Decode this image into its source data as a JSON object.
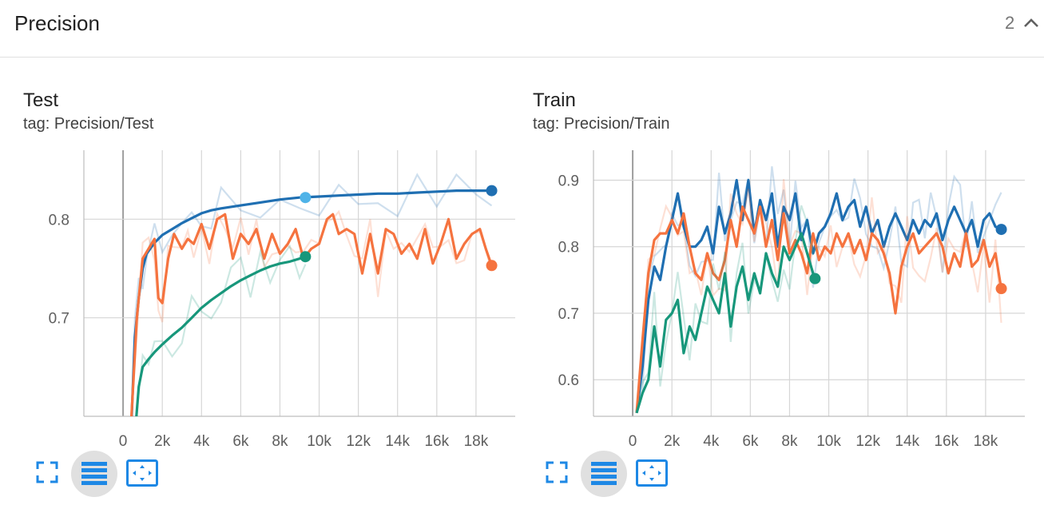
{
  "header": {
    "title": "Precision",
    "count": "2"
  },
  "icons": {
    "collapse": "chevron-up-icon",
    "expand": "fullscreen-icon",
    "lines": "lines-icon",
    "fit": "fit-domain-icon"
  },
  "colors": {
    "blue": "#1f6fb2",
    "orange": "#f5733f",
    "teal": "#17977b",
    "light_blue": "#4fb3e8"
  },
  "chart_data": [
    {
      "type": "line",
      "title": "Test",
      "tag": "tag: Precision/Test",
      "xlabel": "",
      "ylabel": "",
      "xlim": [
        -2000,
        20000
      ],
      "ylim": [
        0.6,
        0.87
      ],
      "x_ticks": [
        "0",
        "2k",
        "4k",
        "6k",
        "8k",
        "10k",
        "12k",
        "14k",
        "16k",
        "18k"
      ],
      "y_ticks": [
        "0.7",
        "0.8"
      ],
      "grid": true,
      "series": [
        {
          "color": "#1f6fb2",
          "x": [
            400,
            600,
            800,
            1000,
            1200,
            1600,
            2000,
            2500,
            3000,
            3500,
            4000,
            4500,
            5000,
            6000,
            7000,
            8000,
            9000,
            10000,
            11000,
            12000,
            13000,
            14000,
            15000,
            16000,
            17000,
            18000,
            18800
          ],
          "y": [
            0.58,
            0.68,
            0.72,
            0.75,
            0.765,
            0.776,
            0.784,
            0.79,
            0.796,
            0.801,
            0.806,
            0.809,
            0.811,
            0.814,
            0.817,
            0.82,
            0.822,
            0.823,
            0.824,
            0.825,
            0.826,
            0.826,
            0.827,
            0.828,
            0.829,
            0.829,
            0.829
          ]
        },
        {
          "color": "#f5733f",
          "x": [
            400,
            700,
            1000,
            1300,
            1600,
            1800,
            2000,
            2300,
            2600,
            3000,
            3300,
            3600,
            4000,
            4400,
            4800,
            5200,
            5600,
            6000,
            6400,
            6800,
            7200,
            7600,
            8000,
            8400,
            8800,
            9200,
            9600,
            10000,
            10400,
            10700,
            11000,
            11400,
            11800,
            12200,
            12600,
            13000,
            13400,
            13800,
            14200,
            14600,
            15000,
            15400,
            15800,
            16200,
            16600,
            17000,
            17400,
            17800,
            18200,
            18500,
            18800
          ],
          "y": [
            0.59,
            0.7,
            0.76,
            0.77,
            0.78,
            0.72,
            0.715,
            0.76,
            0.785,
            0.77,
            0.78,
            0.775,
            0.795,
            0.77,
            0.8,
            0.805,
            0.76,
            0.785,
            0.775,
            0.79,
            0.76,
            0.785,
            0.765,
            0.775,
            0.79,
            0.76,
            0.77,
            0.775,
            0.8,
            0.805,
            0.785,
            0.79,
            0.785,
            0.745,
            0.785,
            0.745,
            0.79,
            0.785,
            0.765,
            0.775,
            0.76,
            0.79,
            0.755,
            0.775,
            0.8,
            0.76,
            0.775,
            0.785,
            0.79,
            0.77,
            0.753
          ]
        },
        {
          "color": "#17977b",
          "x": [
            600,
            800,
            1000,
            1300,
            1600,
            2000,
            2500,
            3000,
            3500,
            4000,
            4500,
            5000,
            5500,
            6000,
            6500,
            7000,
            7500,
            8000,
            8500,
            9000,
            9300
          ],
          "y": [
            0.58,
            0.63,
            0.65,
            0.658,
            0.665,
            0.673,
            0.682,
            0.69,
            0.7,
            0.71,
            0.718,
            0.725,
            0.732,
            0.738,
            0.743,
            0.748,
            0.752,
            0.755,
            0.757,
            0.76,
            0.762
          ]
        }
      ],
      "markers": [
        {
          "color": "#1f6fb2",
          "x": 18800,
          "y": 0.829
        },
        {
          "color": "#f5733f",
          "x": 18800,
          "y": 0.753
        },
        {
          "color": "#17977b",
          "x": 9300,
          "y": 0.762
        },
        {
          "color": "#4fb3e8",
          "x": 9300,
          "y": 0.822
        }
      ]
    },
    {
      "type": "line",
      "title": "Train",
      "tag": "tag: Precision/Train",
      "xlabel": "",
      "ylabel": "",
      "xlim": [
        -2000,
        20000
      ],
      "ylim": [
        0.545,
        0.945
      ],
      "x_ticks": [
        "0",
        "2k",
        "4k",
        "6k",
        "8k",
        "10k",
        "12k",
        "14k",
        "16k",
        "18k"
      ],
      "y_ticks": [
        "0.6",
        "0.7",
        "0.8",
        "0.9"
      ],
      "grid": true,
      "series": [
        {
          "color": "#1f6fb2",
          "x": [
            200,
            500,
            800,
            1100,
            1400,
            1700,
            2000,
            2300,
            2600,
            2900,
            3200,
            3500,
            3800,
            4100,
            4400,
            4700,
            5000,
            5300,
            5600,
            5900,
            6200,
            6500,
            6800,
            7100,
            7400,
            7700,
            8000,
            8300,
            8600,
            8900,
            9200,
            9500,
            9800,
            10100,
            10400,
            10700,
            11000,
            11300,
            11600,
            11900,
            12200,
            12500,
            12800,
            13100,
            13400,
            13700,
            14000,
            14300,
            14600,
            14900,
            15200,
            15500,
            15800,
            16100,
            16400,
            16700,
            17000,
            17300,
            17600,
            17900,
            18200,
            18500,
            18800
          ],
          "y": [
            0.55,
            0.62,
            0.72,
            0.77,
            0.75,
            0.8,
            0.84,
            0.88,
            0.83,
            0.8,
            0.8,
            0.81,
            0.83,
            0.79,
            0.86,
            0.82,
            0.85,
            0.9,
            0.84,
            0.9,
            0.82,
            0.87,
            0.84,
            0.88,
            0.8,
            0.86,
            0.84,
            0.88,
            0.81,
            0.84,
            0.79,
            0.82,
            0.83,
            0.85,
            0.88,
            0.84,
            0.86,
            0.87,
            0.83,
            0.86,
            0.82,
            0.84,
            0.8,
            0.83,
            0.85,
            0.83,
            0.81,
            0.84,
            0.82,
            0.84,
            0.83,
            0.85,
            0.81,
            0.84,
            0.86,
            0.84,
            0.82,
            0.84,
            0.8,
            0.84,
            0.85,
            0.83,
            0.826
          ]
        },
        {
          "color": "#f5733f",
          "x": [
            200,
            500,
            800,
            1100,
            1400,
            1700,
            2000,
            2300,
            2600,
            2900,
            3200,
            3500,
            3800,
            4100,
            4400,
            4700,
            5000,
            5300,
            5600,
            5900,
            6200,
            6500,
            6800,
            7100,
            7400,
            7700,
            8000,
            8300,
            8600,
            8900,
            9200,
            9500,
            9800,
            10100,
            10400,
            10700,
            11000,
            11300,
            11600,
            11900,
            12200,
            12500,
            12800,
            13100,
            13400,
            13700,
            14000,
            14300,
            14600,
            14900,
            15200,
            15500,
            15800,
            16100,
            16400,
            16700,
            17000,
            17300,
            17600,
            17900,
            18200,
            18500,
            18800
          ],
          "y": [
            0.55,
            0.66,
            0.76,
            0.81,
            0.82,
            0.82,
            0.84,
            0.82,
            0.85,
            0.8,
            0.76,
            0.75,
            0.79,
            0.76,
            0.75,
            0.78,
            0.84,
            0.8,
            0.86,
            0.84,
            0.82,
            0.86,
            0.8,
            0.84,
            0.78,
            0.85,
            0.79,
            0.81,
            0.79,
            0.76,
            0.82,
            0.78,
            0.8,
            0.79,
            0.82,
            0.8,
            0.82,
            0.79,
            0.81,
            0.78,
            0.82,
            0.81,
            0.79,
            0.76,
            0.7,
            0.77,
            0.8,
            0.82,
            0.79,
            0.8,
            0.81,
            0.82,
            0.8,
            0.76,
            0.79,
            0.77,
            0.82,
            0.77,
            0.78,
            0.81,
            0.77,
            0.79,
            0.737
          ]
        },
        {
          "color": "#17977b",
          "x": [
            200,
            500,
            800,
            1100,
            1400,
            1700,
            2000,
            2300,
            2600,
            2900,
            3200,
            3500,
            3800,
            4100,
            4400,
            4700,
            5000,
            5300,
            5600,
            5900,
            6200,
            6500,
            6800,
            7100,
            7400,
            7700,
            8000,
            8300,
            8600,
            8900,
            9200,
            9400
          ],
          "y": [
            0.55,
            0.58,
            0.6,
            0.68,
            0.62,
            0.69,
            0.7,
            0.72,
            0.64,
            0.68,
            0.66,
            0.7,
            0.74,
            0.72,
            0.7,
            0.76,
            0.68,
            0.74,
            0.77,
            0.72,
            0.76,
            0.73,
            0.79,
            0.76,
            0.74,
            0.8,
            0.78,
            0.8,
            0.82,
            0.79,
            0.76,
            0.75
          ]
        }
      ],
      "markers": [
        {
          "color": "#1f6fb2",
          "x": 18800,
          "y": 0.826
        },
        {
          "color": "#f5733f",
          "x": 18800,
          "y": 0.737
        },
        {
          "color": "#17977b",
          "x": 9300,
          "y": 0.752
        }
      ]
    }
  ]
}
